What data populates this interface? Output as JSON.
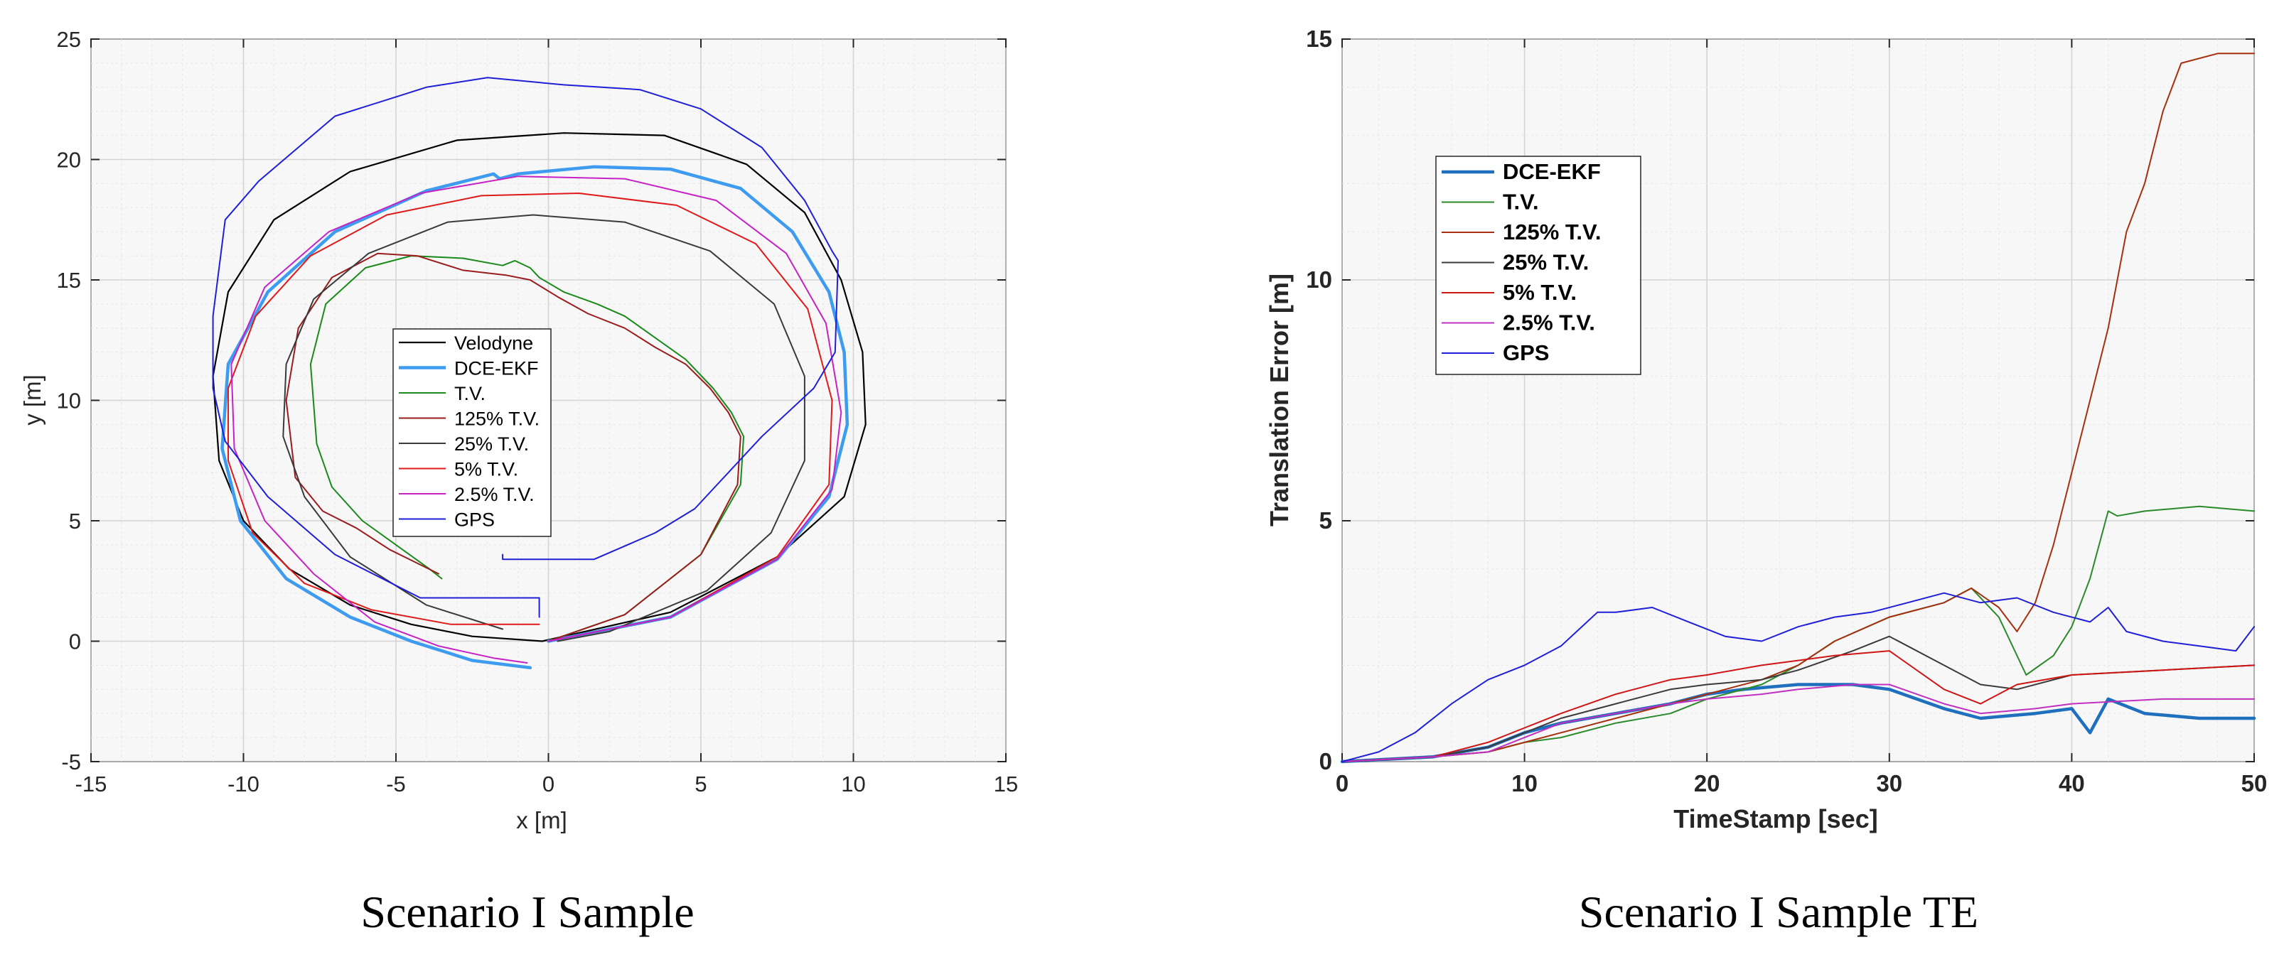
{
  "chart_data": [
    {
      "type": "line",
      "caption": "Scenario I Sample",
      "title": "",
      "xlabel": "x [m]",
      "ylabel": "y [m]",
      "xlim": [
        -15,
        15
      ],
      "ylim": [
        -5,
        25
      ],
      "xticks": [
        -15,
        -10,
        -5,
        0,
        5,
        10,
        15
      ],
      "yticks": [
        -5,
        0,
        5,
        10,
        15,
        20,
        25
      ],
      "grid": true,
      "legend_position": "center",
      "legend": [
        "Velodyne",
        "DCE-EKF",
        "T.V.",
        "125% T.V.",
        "25% T.V.",
        "5% T.V.",
        "2.5% T.V.",
        "GPS"
      ],
      "series": [
        {
          "name": "Velodyne",
          "color": "#000000",
          "width": 2.2,
          "x": [
            -0.2,
            4,
            7.5,
            9.7,
            10.4,
            10.3,
            9.6,
            8.4,
            6.5,
            3.8,
            0.5,
            -3,
            -6.5,
            -9,
            -10.5,
            -11,
            -10.8,
            -10,
            -8.5,
            -6.5,
            -4.5,
            -2.5,
            -0.2
          ],
          "y": [
            0,
            1.2,
            3.5,
            6,
            9,
            12,
            15,
            17.8,
            19.8,
            21,
            21.1,
            20.8,
            19.5,
            17.5,
            14.5,
            11,
            7.5,
            5,
            3,
            1.5,
            0.7,
            0.2,
            0
          ]
        },
        {
          "name": "DCE-EKF",
          "color": "#3d9bf0",
          "width": 4.5,
          "x": [
            0,
            4,
            7.5,
            9.2,
            9.8,
            9.7,
            9.2,
            8,
            6.3,
            4,
            1.5,
            -1,
            -1.6,
            -1.8,
            -4,
            -7,
            -9.2,
            -10.5,
            -10.7,
            -10.1,
            -8.6,
            -6.5,
            -4.5,
            -2.5,
            -0.6
          ],
          "y": [
            0,
            1,
            3.4,
            6,
            9,
            12,
            14.5,
            17,
            18.8,
            19.6,
            19.7,
            19.4,
            19.2,
            19.4,
            18.7,
            17,
            14.5,
            11.5,
            8,
            5,
            2.6,
            1,
            0,
            -0.8,
            -1.1
          ]
        },
        {
          "name": "T.V.",
          "color": "#1a8a1a",
          "width": 2.0,
          "x": [
            0,
            2.5,
            5,
            6.3,
            6.4,
            6,
            5.4,
            4.5,
            3.5,
            2.5,
            1.6,
            0.5,
            -0.3,
            -0.6,
            -1.1,
            -1.5,
            -2.8,
            -4.5,
            -6,
            -7.3,
            -7.8,
            -7.6,
            -7.1,
            -6.1,
            -5,
            -3.9,
            -3.5
          ],
          "y": [
            0,
            1.1,
            3.6,
            6.5,
            8.5,
            9.5,
            10.5,
            11.7,
            12.6,
            13.5,
            14,
            14.5,
            15.1,
            15.5,
            15.8,
            15.6,
            15.9,
            16,
            15.5,
            14,
            11.5,
            8.2,
            6.4,
            5,
            4,
            3,
            2.6
          ]
        },
        {
          "name": "125% T.V.",
          "color": "#9b1c1c",
          "width": 2.0,
          "x": [
            0,
            2.5,
            5,
            6.2,
            6.3,
            5.9,
            5.3,
            4.5,
            3.5,
            2.5,
            1.3,
            0.3,
            -0.6,
            -1.4,
            -2.8,
            -4.3,
            -5.6,
            -7.1,
            -8.2,
            -8.6,
            -8.3,
            -7.4,
            -6.3,
            -5.2,
            -4.4,
            -3.6
          ],
          "y": [
            0,
            1.1,
            3.6,
            6.5,
            8.5,
            9.5,
            10.5,
            11.5,
            12.2,
            13,
            13.6,
            14.3,
            15,
            15.2,
            15.4,
            16,
            16.1,
            15.1,
            13,
            10,
            6.8,
            5.4,
            4.7,
            3.8,
            3.3,
            2.8
          ]
        },
        {
          "name": "25% T.V.",
          "color": "#3a3a3a",
          "width": 2.0,
          "x": [
            -1.5,
            -4,
            -6.5,
            -8,
            -8.7,
            -8.6,
            -7.7,
            -5.9,
            -3.3,
            -0.5,
            2.5,
            5.3,
            7.4,
            8.4,
            8.4,
            7.3,
            5.2,
            2,
            0.3
          ],
          "y": [
            0.5,
            1.5,
            3.5,
            6,
            8.5,
            11.5,
            14.2,
            16.1,
            17.4,
            17.7,
            17.4,
            16.2,
            14,
            11,
            7.5,
            4.5,
            2.1,
            0.4,
            0
          ]
        },
        {
          "name": "5% T.V.",
          "color": "#e01a1a",
          "width": 2.0,
          "x": [
            0,
            4,
            7.5,
            9.2,
            9.3,
            8.5,
            6.8,
            4.2,
            1,
            -2.2,
            -5.3,
            -7.8,
            -9.6,
            -10.5,
            -10.5,
            -9.7,
            -8,
            -5.8,
            -3.2,
            -1.2,
            -0.3
          ],
          "y": [
            0,
            1,
            3.5,
            6.5,
            10,
            13.8,
            16.5,
            18.1,
            18.6,
            18.5,
            17.7,
            16,
            13.5,
            10.5,
            7.5,
            4.5,
            2.4,
            1.3,
            0.7,
            0.7,
            0.7
          ]
        },
        {
          "name": "2.5% T.V.",
          "color": "#c522c5",
          "width": 2.0,
          "x": [
            0,
            4,
            7.5,
            9.3,
            9.6,
            9.1,
            7.8,
            5.5,
            2.5,
            -1,
            -4.2,
            -7.2,
            -9.3,
            -10.4,
            -10.3,
            -9.3,
            -7.7,
            -5.7,
            -3.6,
            -1.8,
            -0.7
          ],
          "y": [
            0,
            1,
            3.4,
            6.3,
            9.5,
            13.2,
            16.1,
            18.3,
            19.2,
            19.3,
            18.6,
            17,
            14.7,
            11.5,
            8,
            5,
            2.8,
            0.8,
            -0.2,
            -0.7,
            -0.9
          ]
        },
        {
          "name": "GPS",
          "color": "#1f1fd8",
          "width": 2.0,
          "x": [
            -0.3,
            -0.3,
            -4.2,
            -7,
            -9.2,
            -10.6,
            -11,
            -11,
            -10.6,
            -9.5,
            -7,
            -5,
            -4,
            -2,
            0.5,
            3,
            5,
            7,
            8.4,
            9.3,
            9.5,
            9.4,
            8.7,
            7,
            4.8,
            3.5,
            1.5,
            -1.5,
            -1.5
          ],
          "y": [
            1,
            1.8,
            1.8,
            3.6,
            6,
            8.3,
            10.5,
            13.5,
            17.5,
            19.1,
            21.8,
            22.6,
            23,
            23.4,
            23.1,
            22.9,
            22.1,
            20.5,
            18.3,
            16.2,
            15.8,
            12,
            10.5,
            8.5,
            5.5,
            4.5,
            3.4,
            3.4,
            3.6
          ]
        }
      ]
    },
    {
      "type": "line",
      "caption": "Scenario I Sample TE",
      "title": "",
      "xlabel": "TimeStamp [sec]",
      "ylabel": "Translation Error [m]",
      "xlim": [
        0,
        50
      ],
      "ylim": [
        0,
        15
      ],
      "xticks": [
        0,
        10,
        20,
        30,
        40,
        50
      ],
      "yticks": [
        0,
        5,
        10,
        15
      ],
      "grid": true,
      "legend_position": "top-left",
      "legend": [
        "DCE-EKF",
        "T.V.",
        "125% T.V.",
        "25% T.V.",
        "5% T.V.",
        "2.5% T.V.",
        "GPS"
      ],
      "series": [
        {
          "name": "DCE-EKF",
          "color": "#1f6fbf",
          "width": 4.5,
          "x": [
            0,
            5,
            8,
            10,
            12,
            15,
            18,
            20,
            22,
            25,
            28,
            30,
            33,
            35,
            38,
            40,
            41,
            42,
            44,
            47,
            50
          ],
          "y": [
            0,
            0.1,
            0.3,
            0.6,
            0.8,
            1,
            1.2,
            1.4,
            1.5,
            1.6,
            1.6,
            1.5,
            1.1,
            0.9,
            1,
            1.1,
            0.6,
            1.3,
            1,
            0.9,
            0.9
          ]
        },
        {
          "name": "T.V.",
          "color": "#2a8a2a",
          "width": 2.0,
          "x": [
            0,
            5,
            8,
            10,
            12,
            15,
            18,
            20,
            23,
            25,
            27,
            30,
            33,
            34.5,
            36,
            37.5,
            39,
            40,
            41,
            42,
            42.5,
            44,
            47,
            50
          ],
          "y": [
            0,
            0.1,
            0.2,
            0.4,
            0.5,
            0.8,
            1,
            1.3,
            1.6,
            2,
            2.5,
            3,
            3.3,
            3.6,
            3,
            1.8,
            2.2,
            2.8,
            3.8,
            5.2,
            5.1,
            5.2,
            5.3,
            5.2
          ]
        },
        {
          "name": "125% T.V.",
          "color": "#a5300f",
          "width": 2.0,
          "x": [
            0,
            5,
            8,
            10,
            12,
            15,
            18,
            20,
            23,
            25,
            27,
            30,
            33,
            34.5,
            36,
            37,
            38,
            39,
            40,
            41,
            42,
            43,
            44,
            45,
            46,
            47,
            48,
            50
          ],
          "y": [
            0,
            0.1,
            0.2,
            0.4,
            0.6,
            0.9,
            1.2,
            1.4,
            1.7,
            2,
            2.5,
            3,
            3.3,
            3.6,
            3.2,
            2.7,
            3.3,
            4.5,
            6,
            7.5,
            9,
            11,
            12,
            13.5,
            14.5,
            14.6,
            14.7,
            14.7
          ]
        },
        {
          "name": "25% T.V.",
          "color": "#3a3a3a",
          "width": 2.0,
          "x": [
            0,
            5,
            8,
            10,
            12,
            15,
            18,
            20,
            23,
            25,
            28,
            30,
            33,
            35,
            37,
            40,
            45,
            50
          ],
          "y": [
            0,
            0.1,
            0.3,
            0.6,
            0.9,
            1.2,
            1.5,
            1.6,
            1.7,
            1.9,
            2.3,
            2.6,
            2,
            1.6,
            1.5,
            1.8,
            1.9,
            2
          ]
        },
        {
          "name": "5% T.V.",
          "color": "#d01515",
          "width": 2.0,
          "x": [
            0,
            5,
            8,
            10,
            12,
            15,
            18,
            20,
            23,
            25,
            27,
            30,
            33,
            35,
            37,
            40,
            45,
            50
          ],
          "y": [
            0,
            0.1,
            0.4,
            0.7,
            1,
            1.4,
            1.7,
            1.8,
            2,
            2.1,
            2.2,
            2.3,
            1.5,
            1.2,
            1.6,
            1.8,
            1.9,
            2
          ]
        },
        {
          "name": "2.5% T.V.",
          "color": "#c030c0",
          "width": 2.0,
          "x": [
            0,
            5,
            8,
            10,
            12,
            15,
            18,
            20,
            23,
            25,
            28,
            30,
            33,
            35,
            38,
            40,
            45,
            50
          ],
          "y": [
            0,
            0.1,
            0.2,
            0.5,
            0.8,
            1,
            1.2,
            1.3,
            1.4,
            1.5,
            1.6,
            1.6,
            1.2,
            1,
            1.1,
            1.2,
            1.3,
            1.3
          ]
        },
        {
          "name": "GPS",
          "color": "#1f1fd8",
          "width": 2.0,
          "x": [
            0,
            2,
            4,
            6,
            8,
            10,
            12,
            14,
            15,
            17,
            19,
            21,
            23,
            25,
            27,
            29,
            31,
            33,
            35,
            37,
            39,
            41,
            42,
            43,
            45,
            47,
            49,
            50
          ],
          "y": [
            0,
            0.2,
            0.6,
            1.2,
            1.7,
            2,
            2.4,
            3.1,
            3.1,
            3.2,
            2.9,
            2.6,
            2.5,
            2.8,
            3,
            3.1,
            3.3,
            3.5,
            3.3,
            3.4,
            3.1,
            2.9,
            3.2,
            2.7,
            2.5,
            2.4,
            2.3,
            2.8
          ]
        }
      ]
    }
  ]
}
